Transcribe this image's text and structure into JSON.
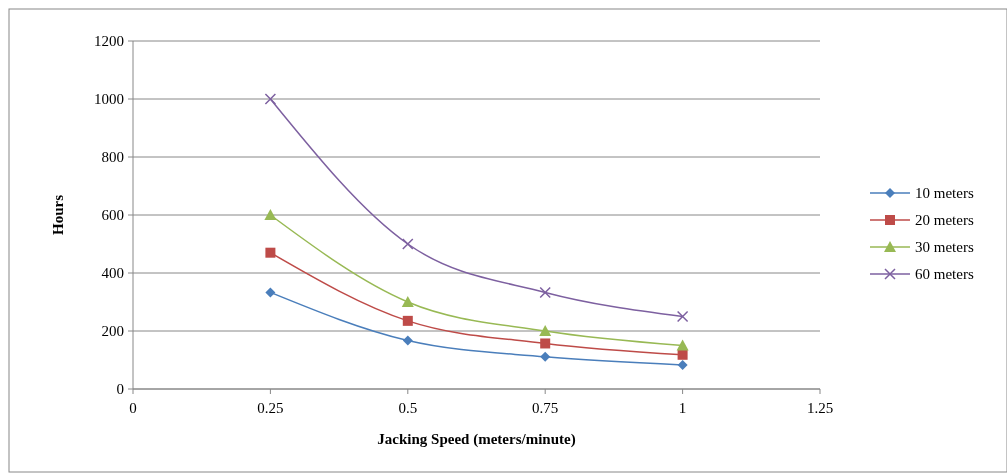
{
  "chart_data": {
    "type": "line",
    "xlabel": "Jacking Speed (meters/minute)",
    "ylabel": "Hours",
    "x": [
      0.25,
      0.5,
      0.75,
      1
    ],
    "series": [
      {
        "name": "10 meters",
        "color": "#4a7ebb",
        "marker": "diamond",
        "values": [
          333,
          167,
          111,
          83
        ]
      },
      {
        "name": "20 meters",
        "color": "#be4b48",
        "marker": "square",
        "values": [
          470,
          235,
          157,
          118
        ]
      },
      {
        "name": "30 meters",
        "color": "#98b954",
        "marker": "triangle",
        "values": [
          600,
          300,
          200,
          150
        ]
      },
      {
        "name": "60 meters",
        "color": "#7d60a0",
        "marker": "cross",
        "values": [
          1000,
          500,
          333,
          250
        ]
      }
    ],
    "xlim": [
      0,
      1.25
    ],
    "xticks": [
      0,
      0.25,
      0.5,
      0.75,
      1,
      1.25
    ],
    "ylim": [
      0,
      1200
    ],
    "yticks": [
      0,
      200,
      400,
      600,
      800,
      1000,
      1200
    ],
    "grid": "y",
    "legend": "right"
  }
}
